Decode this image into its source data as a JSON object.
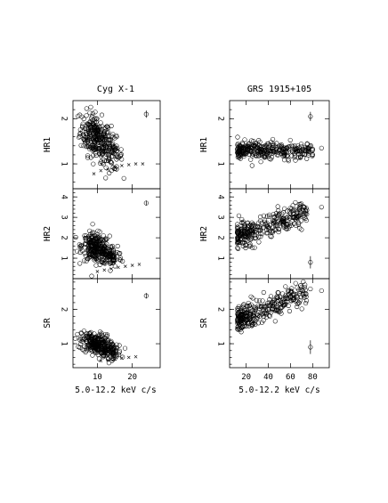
{
  "chart_data": {
    "type": "scatter",
    "panels_layout": "3 rows x 2 columns, shared x axis per column",
    "columns": [
      {
        "title": "Cyg X-1",
        "xlabel": "5.0-12.2 keV c/s",
        "xlim": [
          3,
          28
        ],
        "xticks": [
          10,
          20
        ],
        "rows": [
          {
            "ylabel": "HR1",
            "ylim": [
              0.45,
              2.4
            ],
            "yticks": [
              1,
              2
            ],
            "clusters": [
              {
                "cx": 9.5,
                "cy": 1.6,
                "sx": 2.2,
                "sy": 0.24,
                "n": 260,
                "slope": -0.04
              },
              {
                "cx": 14,
                "cy": 1.25,
                "sx": 1.6,
                "sy": 0.18,
                "n": 80,
                "slope": -0.03
              }
            ],
            "crosses": [
              [
                9,
                0.78
              ],
              [
                11,
                0.85
              ],
              [
                13,
                0.88
              ],
              [
                15,
                0.93
              ],
              [
                17,
                0.96
              ],
              [
                19,
                0.98
              ],
              [
                21,
                1.0
              ],
              [
                23,
                1.0
              ]
            ],
            "errorbar": {
              "x": 24,
              "y": 2.1,
              "err": 0.08
            }
          },
          {
            "ylabel": "HR2",
            "ylim": [
              0,
              4.4
            ],
            "yticks": [
              1,
              2,
              3,
              4
            ],
            "clusters": [
              {
                "cx": 9.5,
                "cy": 1.5,
                "sx": 2.0,
                "sy": 0.35,
                "n": 260,
                "slope": -0.03
              },
              {
                "cx": 14,
                "cy": 1.1,
                "sx": 1.5,
                "sy": 0.25,
                "n": 80,
                "slope": -0.03
              }
            ],
            "crosses": [
              [
                10,
                0.35
              ],
              [
                12,
                0.42
              ],
              [
                14,
                0.48
              ],
              [
                16,
                0.55
              ],
              [
                18,
                0.6
              ],
              [
                20,
                0.65
              ],
              [
                22,
                0.7
              ]
            ],
            "errorbar": {
              "x": 24,
              "y": 3.7,
              "err": 0.12
            }
          },
          {
            "ylabel": "SR",
            "ylim": [
              0.3,
              2.9
            ],
            "yticks": [
              1,
              2
            ],
            "clusters": [
              {
                "cx": 9.5,
                "cy": 1.0,
                "sx": 2.0,
                "sy": 0.16,
                "n": 250,
                "slope": -0.02
              },
              {
                "cx": 14,
                "cy": 0.8,
                "sx": 1.5,
                "sy": 0.12,
                "n": 80,
                "slope": -0.02
              }
            ],
            "crosses": [
              [
                11,
                0.5
              ],
              [
                13,
                0.52
              ],
              [
                15,
                0.55
              ],
              [
                17,
                0.58
              ],
              [
                19,
                0.6
              ],
              [
                21,
                0.62
              ]
            ],
            "errorbar": {
              "x": 24,
              "y": 2.4,
              "err": 0.08
            }
          }
        ]
      },
      {
        "title": "GRS 1915+105",
        "xlabel": "5.0-12.2 keV c/s",
        "xlim": [
          5,
          95
        ],
        "xticks": [
          20,
          40,
          60,
          80
        ],
        "rows": [
          {
            "ylabel": "HR1",
            "ylim": [
              0.45,
              2.4
            ],
            "yticks": [
              1,
              2
            ],
            "band": {
              "x0": 12,
              "x1": 80,
              "y0": 1.3,
              "y1": 1.3,
              "sy": 0.09,
              "n": 320
            },
            "extra": [
              [
                88,
                1.35
              ]
            ],
            "errorbar": {
              "x": 78,
              "y": 2.05,
              "err": 0.1
            }
          },
          {
            "ylabel": "HR2",
            "ylim": [
              0,
              4.4
            ],
            "yticks": [
              1,
              2,
              3,
              4
            ],
            "band": {
              "x0": 12,
              "x1": 75,
              "y0": 2.1,
              "y1": 3.3,
              "sy": 0.28,
              "n": 320
            },
            "extra": [
              [
                68,
                3.4
              ],
              [
                72,
                3.5
              ],
              [
                88,
                3.5
              ],
              [
                65,
                2.6
              ],
              [
                70,
                2.4
              ]
            ],
            "errorbar": {
              "x": 78,
              "y": 0.8,
              "err": 0.3
            }
          },
          {
            "ylabel": "SR",
            "ylim": [
              0.3,
              2.9
            ],
            "yticks": [
              1,
              2
            ],
            "band": {
              "x0": 12,
              "x1": 75,
              "y0": 1.7,
              "y1": 2.5,
              "sy": 0.18,
              "n": 320
            },
            "extra": [
              [
                88,
                2.55
              ],
              [
                78,
                2.6
              ]
            ],
            "errorbar": {
              "x": 78,
              "y": 0.9,
              "err": 0.2
            }
          }
        ]
      }
    ]
  }
}
